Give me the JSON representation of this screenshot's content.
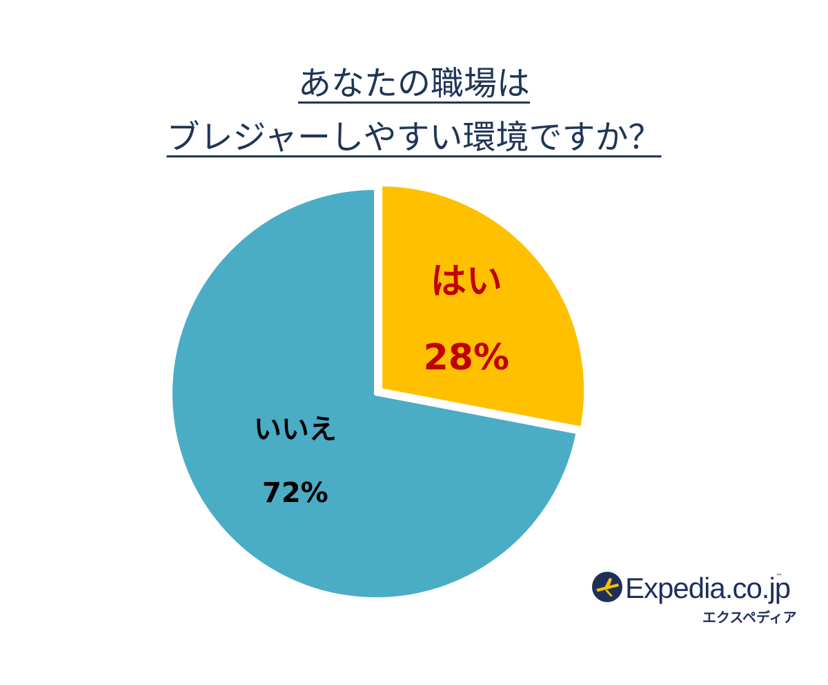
{
  "title": {
    "line1": "あなたの職場は",
    "line2": "ブレジャーしやすい環境ですか？"
  },
  "chart_data": {
    "type": "pie",
    "title": "あなたの職場は ブレジャーしやすい環境ですか？",
    "slices": [
      {
        "label": "はい",
        "value": 28,
        "value_label": "28%",
        "color": "#ffc000",
        "label_color": "#c00000"
      },
      {
        "label": "いいえ",
        "value": 72,
        "value_label": "72%",
        "color": "#4bacc6",
        "label_color": "#000000"
      }
    ],
    "start_angle": "12 o'clock",
    "direction": "clockwise",
    "exploded": "はい",
    "legend": "none"
  },
  "logo": {
    "brand": "Expedia.co.jp",
    "trademark": "™",
    "kana": "エクスペディア",
    "color": "#1f2f5a",
    "accent": "#f2c200"
  }
}
